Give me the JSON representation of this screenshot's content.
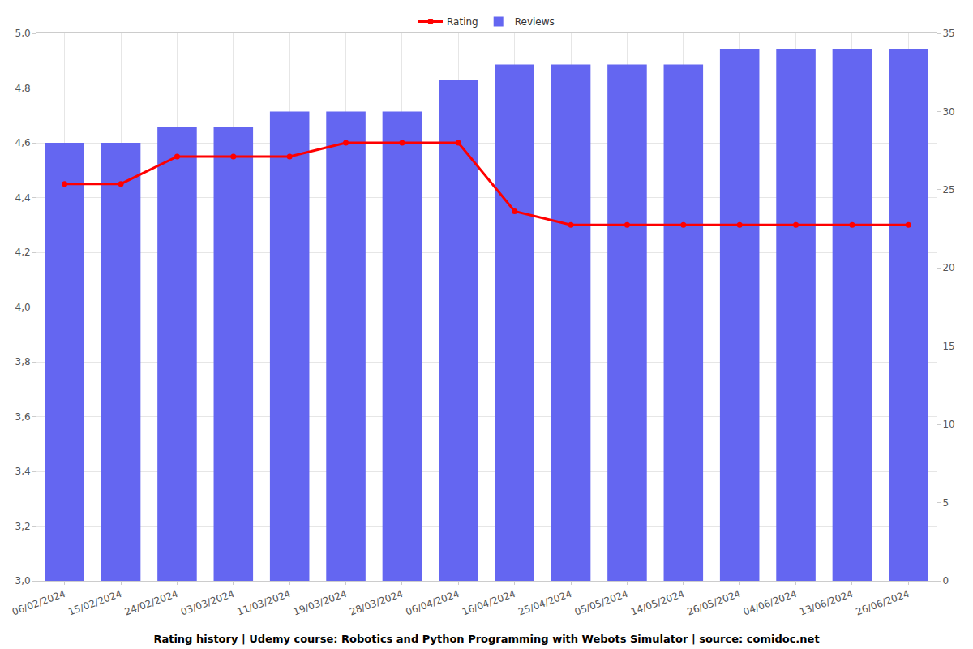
{
  "chart_data": {
    "type": "bar",
    "title": "Rating history | Udemy course: Robotics and Python Programming with Webots Simulator | source: comidoc.net",
    "categories": [
      "06/02/2024",
      "15/02/2024",
      "24/02/2024",
      "03/03/2024",
      "11/03/2024",
      "19/03/2024",
      "28/03/2024",
      "06/04/2024",
      "16/04/2024",
      "25/04/2024",
      "05/05/2024",
      "14/05/2024",
      "26/05/2024",
      "04/06/2024",
      "13/06/2024",
      "26/06/2024"
    ],
    "series": [
      {
        "name": "Rating",
        "type": "line",
        "marker": "circle",
        "color": "#ff0000",
        "values": [
          4.45,
          4.45,
          4.55,
          4.55,
          4.55,
          4.6,
          4.6,
          4.6,
          4.35,
          4.3,
          4.3,
          4.3,
          4.3,
          4.3,
          4.3,
          4.3
        ]
      },
      {
        "name": "Reviews",
        "type": "bar",
        "axis": "y2",
        "color": "#6466f1",
        "values": [
          28,
          28,
          29,
          29,
          30,
          30,
          30,
          32,
          33,
          33,
          33,
          33,
          34,
          34,
          34,
          34
        ]
      }
    ],
    "ylim": [
      3,
      5
    ],
    "yticks": [
      {
        "value": 3,
        "label": "3,0"
      },
      {
        "value": 3.2,
        "label": "3,2"
      },
      {
        "value": 3.4,
        "label": "3,4"
      },
      {
        "value": 3.6,
        "label": "3,6"
      },
      {
        "value": 3.8,
        "label": "3,8"
      },
      {
        "value": 4,
        "label": "4,0"
      },
      {
        "value": 4.2,
        "label": "4,2"
      },
      {
        "value": 4.4,
        "label": "4,4"
      },
      {
        "value": 4.6,
        "label": "4,6"
      },
      {
        "value": 4.8,
        "label": "4,8"
      },
      {
        "value": 5,
        "label": "5,0"
      }
    ],
    "y2lim": [
      0,
      35
    ],
    "y2ticks": [
      0,
      5,
      10,
      15,
      20,
      25,
      30,
      35
    ],
    "grid": true,
    "legend": "top"
  }
}
